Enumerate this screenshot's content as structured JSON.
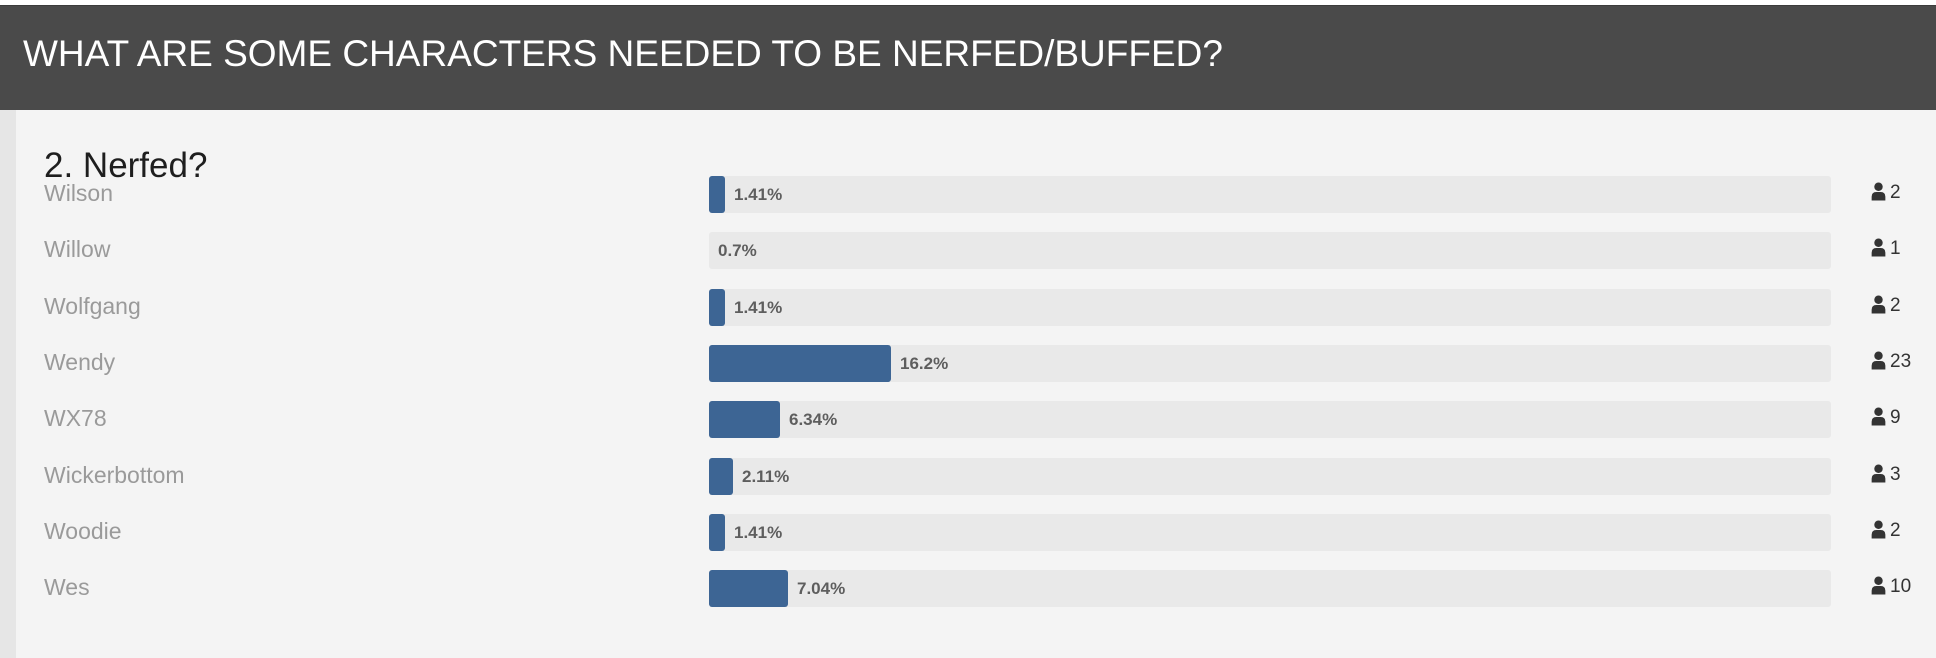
{
  "poll": {
    "title": "WHAT ARE SOME CHARACTERS NEEDED TO BE NERFED/BUFFED?",
    "question": "2. Nerfed?",
    "voter_icon": "user-icon",
    "colors": {
      "header_bg": "#4a4a4a",
      "bar_fill": "#3d6594",
      "bar_track": "#e9e9e9",
      "body_bg": "#f4f4f4"
    },
    "options": [
      {
        "label": "Wilson",
        "percent_label": "1.41%",
        "percent": 1.41,
        "voters": "2"
      },
      {
        "label": "Willow",
        "percent_label": "0.7%",
        "percent": 0.7,
        "voters": "1"
      },
      {
        "label": "Wolfgang",
        "percent_label": "1.41%",
        "percent": 1.41,
        "voters": "2"
      },
      {
        "label": "Wendy",
        "percent_label": "16.2%",
        "percent": 16.2,
        "voters": "23"
      },
      {
        "label": "WX78",
        "percent_label": "6.34%",
        "percent": 6.34,
        "voters": "9"
      },
      {
        "label": "Wickerbottom",
        "percent_label": "2.11%",
        "percent": 2.11,
        "voters": "3"
      },
      {
        "label": "Woodie",
        "percent_label": "1.41%",
        "percent": 1.41,
        "voters": "2"
      },
      {
        "label": "Wes",
        "percent_label": "7.04%",
        "percent": 7.04,
        "voters": "10"
      }
    ]
  }
}
